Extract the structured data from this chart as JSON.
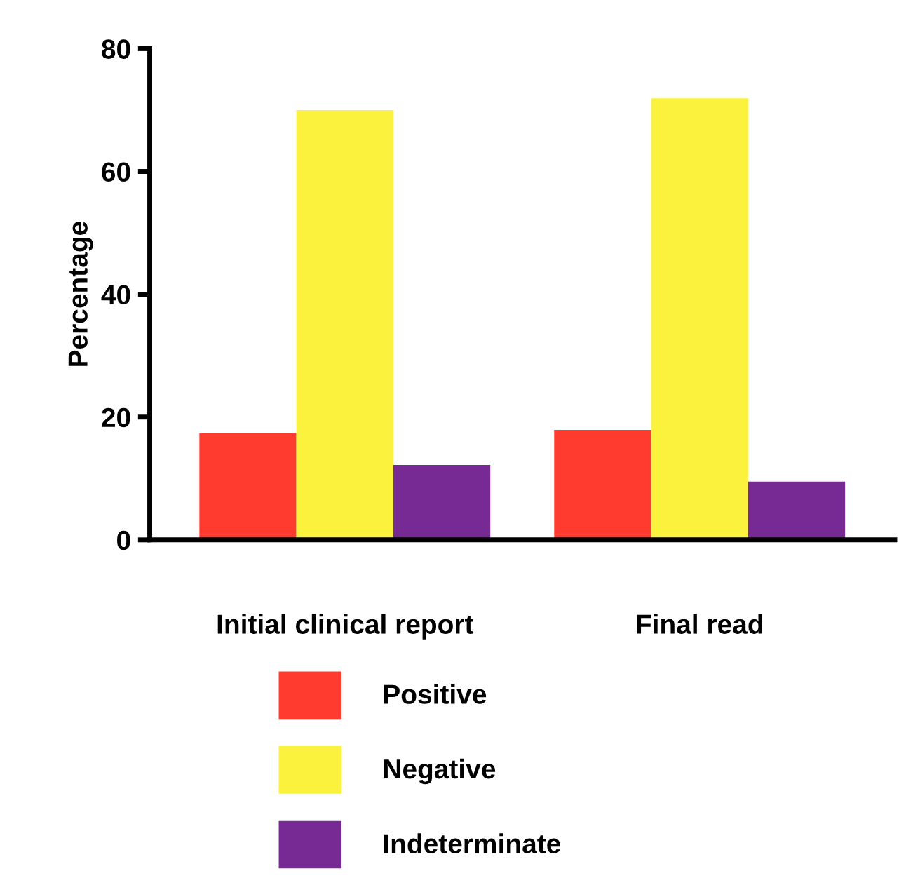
{
  "chart_data": {
    "type": "bar",
    "ylabel": "Percentage",
    "categories": [
      "Initial clinical report",
      "Final read"
    ],
    "series": [
      {
        "name": "Positive",
        "color": "#ff3a2f",
        "values": [
          17.4,
          17.9
        ]
      },
      {
        "name": "Negative",
        "color": "#fbf23e",
        "values": [
          70.0,
          71.9
        ]
      },
      {
        "name": "Indeterminate",
        "color": "#772a93",
        "values": [
          12.2,
          9.5
        ]
      }
    ],
    "ylim": [
      0,
      80
    ],
    "yticks": [
      0,
      20,
      40,
      60,
      80
    ],
    "grid": false,
    "legend": "bottom"
  }
}
